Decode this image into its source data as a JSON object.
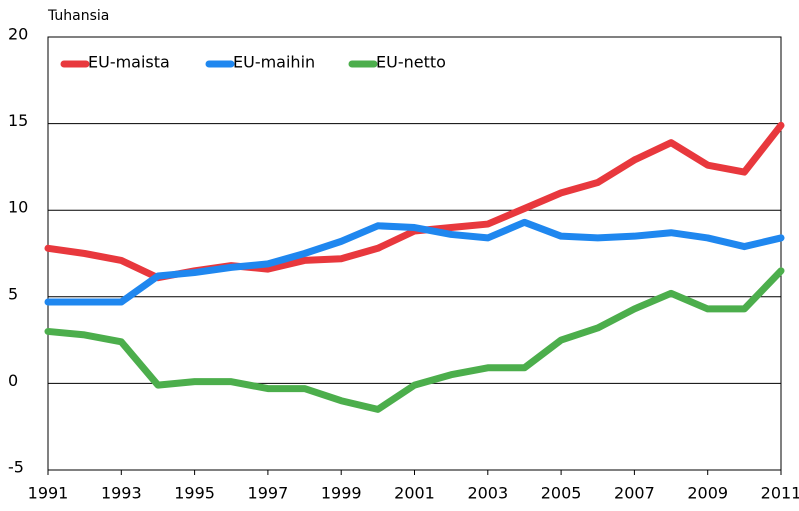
{
  "chart_data": {
    "type": "line",
    "y_label": "Tuhansia",
    "x": [
      1991,
      1992,
      1993,
      1994,
      1995,
      1996,
      1997,
      1998,
      1999,
      2000,
      2001,
      2002,
      2003,
      2004,
      2005,
      2006,
      2007,
      2008,
      2009,
      2010,
      2011
    ],
    "series": [
      {
        "name": "EU-maista",
        "color": "#e8383d",
        "values": [
          7.8,
          7.5,
          7.1,
          6.1,
          6.5,
          6.8,
          6.6,
          7.1,
          7.2,
          7.8,
          8.8,
          9.0,
          9.2,
          10.1,
          11.0,
          11.6,
          12.9,
          13.9,
          12.6,
          12.2,
          14.9
        ]
      },
      {
        "name": "EU-maihin",
        "color": "#1f87ef",
        "values": [
          4.7,
          4.7,
          4.7,
          6.2,
          6.4,
          6.7,
          6.9,
          7.5,
          8.2,
          9.1,
          9.0,
          8.6,
          8.4,
          9.3,
          8.5,
          8.4,
          8.5,
          8.7,
          8.4,
          7.9,
          8.4
        ]
      },
      {
        "name": "EU-netto",
        "color": "#4cae4c",
        "values": [
          3.0,
          2.8,
          2.4,
          -0.1,
          0.1,
          0.1,
          -0.3,
          -0.3,
          -1.0,
          -1.5,
          -0.1,
          0.5,
          0.9,
          0.9,
          2.5,
          3.2,
          4.3,
          5.2,
          4.3,
          4.3,
          6.5
        ]
      }
    ],
    "xlim": [
      1991,
      2011
    ],
    "xticks": [
      1991,
      1993,
      1995,
      1997,
      1999,
      2001,
      2003,
      2005,
      2007,
      2009,
      2011
    ],
    "ylim": [
      -5,
      20
    ],
    "yticks": [
      -5,
      0,
      5,
      10,
      15,
      20
    ],
    "grid": true,
    "legend": "top-left"
  }
}
